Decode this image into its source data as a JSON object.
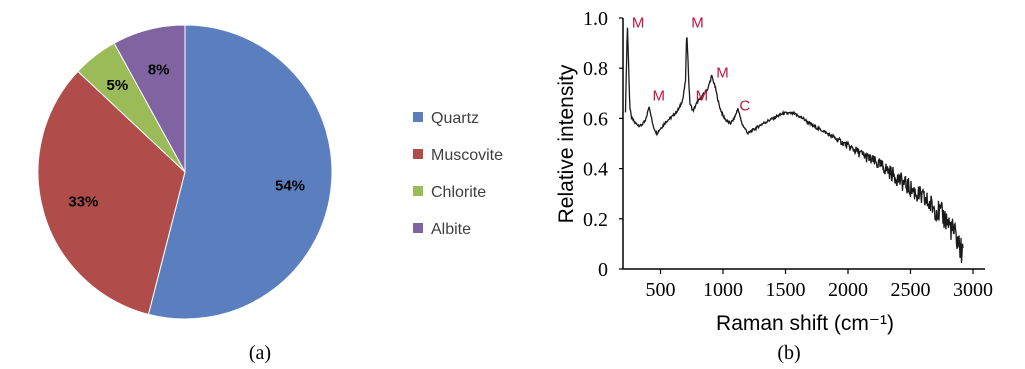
{
  "chart_data": [
    {
      "type": "pie",
      "panel_label": "(a)",
      "categories": [
        "Quartz",
        "Muscovite",
        "Chlorite",
        "Albite"
      ],
      "values": [
        54,
        33,
        5,
        8
      ],
      "value_labels": [
        "54%",
        "33%",
        "5%",
        "8%"
      ],
      "colors": [
        "#5b7fbe",
        "#b04d4a",
        "#9bbb59",
        "#8064a2"
      ],
      "legend": {
        "placement": "right"
      }
    },
    {
      "type": "line",
      "panel_label": "(b)",
      "xlabel": "Raman shift (cm⁻¹)",
      "ylabel": "Relative intensity",
      "xlim": [
        200,
        3000
      ],
      "ylim": [
        0,
        1.0
      ],
      "xticks": [
        "500",
        "1000",
        "1500",
        "2000",
        "2500",
        "3000"
      ],
      "yticks": [
        "0",
        "0.2",
        "0.4",
        "0.6",
        "0.8",
        "1.0"
      ],
      "grid": false,
      "line_color": "#1a1a1a",
      "series": [
        {
          "x": [
            220,
            235,
            248,
            255,
            262,
            270,
            300,
            340,
            380,
            410,
            440,
            470,
            500,
            550,
            600,
            650,
            680,
            700,
            710,
            718,
            725,
            735,
            760,
            790,
            820,
            850,
            880,
            910,
            940,
            970,
            1000,
            1030,
            1060,
            1090,
            1120,
            1150,
            1200,
            1260,
            1320,
            1400,
            1480,
            1560,
            1640,
            1720,
            1800,
            1900,
            2000,
            2100,
            2200,
            2300,
            2400,
            2500,
            2600,
            2700,
            2780,
            2830,
            2870,
            2900,
            2920
          ],
          "y": [
            0.63,
            0.98,
            0.76,
            0.64,
            0.62,
            0.6,
            0.58,
            0.57,
            0.59,
            0.65,
            0.57,
            0.54,
            0.56,
            0.59,
            0.61,
            0.64,
            0.68,
            0.75,
            0.95,
            0.86,
            0.76,
            0.66,
            0.63,
            0.66,
            0.68,
            0.7,
            0.72,
            0.77,
            0.72,
            0.65,
            0.61,
            0.59,
            0.58,
            0.6,
            0.64,
            0.58,
            0.54,
            0.56,
            0.58,
            0.6,
            0.62,
            0.62,
            0.6,
            0.57,
            0.55,
            0.52,
            0.49,
            0.46,
            0.43,
            0.4,
            0.36,
            0.32,
            0.28,
            0.24,
            0.2,
            0.16,
            0.12,
            0.08,
            0.05
          ]
        }
      ],
      "annotations": [
        {
          "text": "M",
          "x": 255,
          "y": 0.97
        },
        {
          "text": "M",
          "x": 420,
          "y": 0.68
        },
        {
          "text": "M",
          "x": 730,
          "y": 0.97
        },
        {
          "text": "M",
          "x": 765,
          "y": 0.68
        },
        {
          "text": "M",
          "x": 930,
          "y": 0.77
        },
        {
          "text": "C",
          "x": 1115,
          "y": 0.64
        }
      ]
    }
  ]
}
